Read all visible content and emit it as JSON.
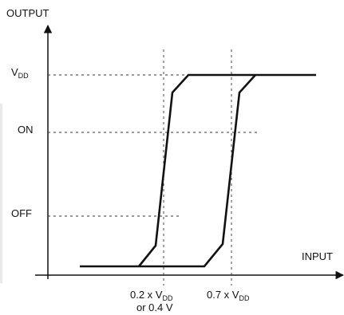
{
  "axes": {
    "y_label": "OUTPUT",
    "x_label": "INPUT"
  },
  "levels": {
    "vdd": {
      "main": "V",
      "sub": "DD"
    },
    "on": "ON",
    "off": "OFF"
  },
  "thresholds": {
    "low": {
      "prefix": "0.2 x V",
      "sub": "DD",
      "line2": "or 0.4 V"
    },
    "high": {
      "prefix": "0.7 x V",
      "sub": "DD"
    }
  },
  "colors": {
    "ink": "#111111",
    "guide": "#333333"
  }
}
